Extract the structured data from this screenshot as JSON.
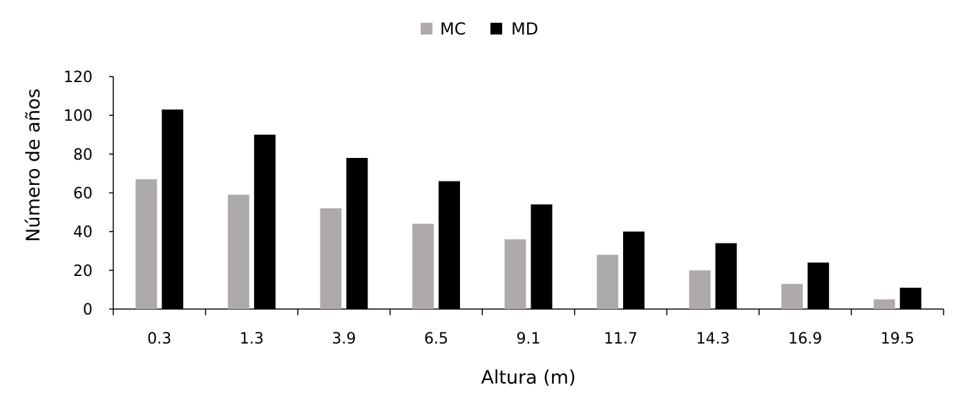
{
  "chart_data": {
    "type": "bar",
    "title": "",
    "xlabel": "Altura (m)",
    "ylabel": "Número de años",
    "categories": [
      "0.3",
      "1.3",
      "3.9",
      "6.5",
      "9.1",
      "11.7",
      "14.3",
      "16.9",
      "19.5"
    ],
    "series": [
      {
        "name": "MC",
        "color": "#aeaaaa",
        "values": [
          67,
          59,
          52,
          44,
          36,
          28,
          20,
          13,
          5
        ]
      },
      {
        "name": "MD",
        "color": "#000000",
        "values": [
          103,
          90,
          78,
          66,
          54,
          40,
          34,
          24,
          11
        ]
      }
    ],
    "ylim": [
      0,
      120
    ],
    "yticks": [
      "0",
      "20",
      "40",
      "60",
      "80",
      "100",
      "120"
    ],
    "grid": false,
    "legend_position": "top-center"
  }
}
